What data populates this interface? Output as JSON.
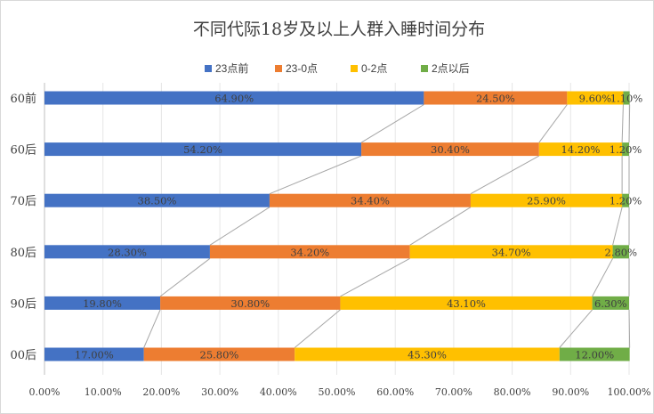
{
  "chart_data": {
    "type": "bar",
    "orientation": "horizontal",
    "stacked": "percent",
    "title": "不同代际18岁及以上人群入睡时间分布",
    "categories": [
      "60前",
      "60后",
      "70后",
      "80后",
      "90后",
      "00后"
    ],
    "series": [
      {
        "name": "23点前",
        "color": "#4472c4",
        "values": [
          64.9,
          54.2,
          38.5,
          28.3,
          19.8,
          17.0
        ],
        "labels": [
          "64.90%",
          "54.20%",
          "38.50%",
          "28.30%",
          "19.80%",
          "17.00%"
        ]
      },
      {
        "name": "23-0点",
        "color": "#ed7d31",
        "values": [
          24.5,
          30.4,
          34.4,
          34.2,
          30.8,
          25.8
        ],
        "labels": [
          "24.50%",
          "30.40%",
          "34.40%",
          "34.20%",
          "30.80%",
          "25.80%"
        ]
      },
      {
        "name": "0-2点",
        "color": "#ffc000",
        "values": [
          9.6,
          14.2,
          25.9,
          34.7,
          43.1,
          45.3
        ],
        "labels": [
          "9.60%",
          "14.20%",
          "25.90%",
          "34.70%",
          "43.10%",
          "45.30%"
        ]
      },
      {
        "name": "2点以后",
        "color": "#70ad47",
        "values": [
          1.1,
          1.2,
          1.2,
          2.8,
          6.3,
          12.0
        ],
        "labels": [
          "1.10%",
          "1.20%",
          "1.20%",
          "2.80%",
          "6.30%",
          "12.00%"
        ]
      }
    ],
    "x_ticks": [
      "0.00%",
      "10.00%",
      "20.00%",
      "30.00%",
      "40.00%",
      "50.00%",
      "60.00%",
      "70.00%",
      "80.00%",
      "90.00%",
      "100.00%"
    ],
    "xlim": [
      0,
      100
    ],
    "grid": true,
    "series_lines": true,
    "legend_position": "top"
  }
}
